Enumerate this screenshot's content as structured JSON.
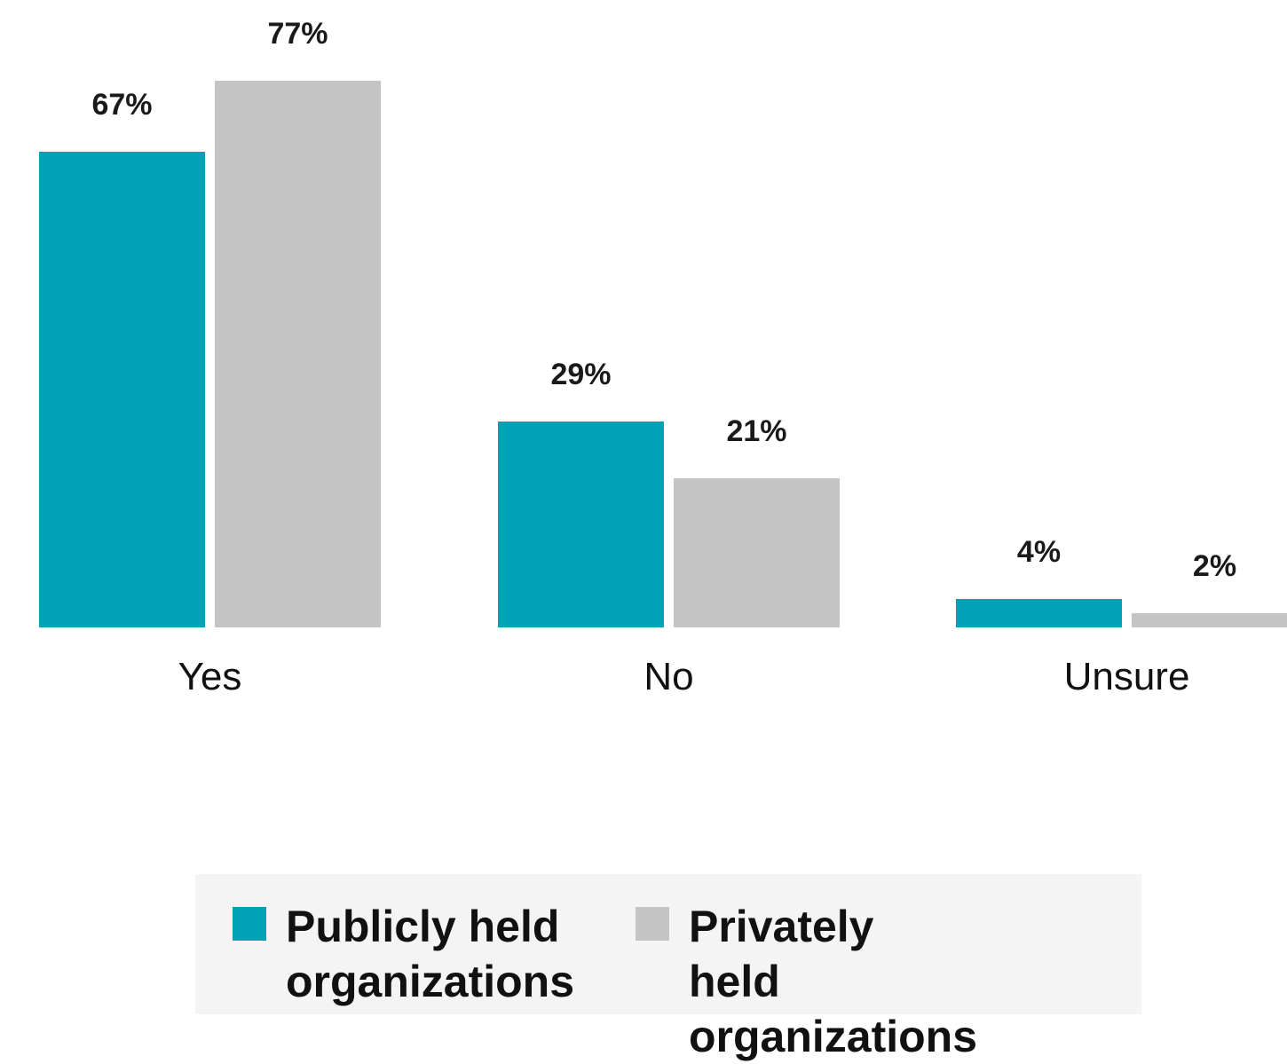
{
  "chart_data": {
    "type": "bar",
    "categories": [
      "Yes",
      "No",
      "Unsure"
    ],
    "series": [
      {
        "name": "Publicly held organizations",
        "values": [
          67,
          29,
          4
        ],
        "labels": [
          "67%",
          "29%",
          "4%"
        ],
        "color": "#00a3b6"
      },
      {
        "name": "Privately held organizations",
        "values": [
          77,
          21,
          2
        ],
        "labels": [
          "77%",
          "21%",
          "2%"
        ],
        "color": "#c4c4c4"
      }
    ],
    "ylim": [
      0,
      100
    ],
    "grid": false,
    "legend_position": "bottom"
  },
  "legend": {
    "items": [
      {
        "label": "Publicly held organizations",
        "color": "#00a3b6"
      },
      {
        "label": "Privately held organizations",
        "color": "#c4c4c4"
      }
    ]
  }
}
